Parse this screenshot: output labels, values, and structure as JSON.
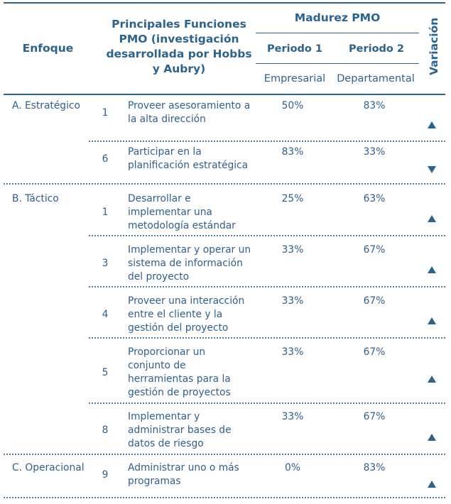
{
  "header": {
    "enfoque": "Enfoque",
    "funciones": [
      "Principales Funciones",
      "PMO (investigación",
      "desarrollada por Hobbs",
      "y Aubry)"
    ],
    "madurez": "Madurez PMO",
    "periodo1": "Periodo 1",
    "periodo2": "Periodo 2",
    "empresarial": "Empresarial",
    "departamental": "Departamental",
    "variacion": "Variación"
  },
  "rows": [
    {
      "enfoque": "A. Estratégico",
      "num": "1",
      "func": [
        "Proveer asesoramiento a",
        "la alta dirección"
      ],
      "p1": "50%",
      "p2": "83%",
      "var": "up"
    },
    {
      "enfoque": "",
      "num": "6",
      "func": [
        "Participar en la",
        "planificación estratégica"
      ],
      "p1": "83%",
      "p2": "33%",
      "var": "down"
    },
    {
      "enfoque": "B. Táctico",
      "num": "1",
      "func": [
        "Desarrollar e",
        "implementar una",
        "metodología estándar"
      ],
      "p1": "25%",
      "p2": "63%",
      "var": "up"
    },
    {
      "enfoque": "",
      "num": "3",
      "func": [
        "Implementar y operar un",
        "sistema de información",
        "del proyecto"
      ],
      "p1": "33%",
      "p2": "67%",
      "var": "up"
    },
    {
      "enfoque": "",
      "num": "4",
      "func": [
        "Proveer una interacción",
        "entre el cliente y la",
        "gestión del proyecto"
      ],
      "p1": "33%",
      "p2": "67%",
      "var": "up"
    },
    {
      "enfoque": "",
      "num": "5",
      "func": [
        "Proporcionar un",
        "conjunto de",
        "herramientas para la",
        "gestión de proyectos"
      ],
      "p1": "33%",
      "p2": "67%",
      "var": "up"
    },
    {
      "enfoque": "",
      "num": "8",
      "func": [
        "Implementar y",
        "administrar bases de",
        "datos de riesgo"
      ],
      "p1": "33%",
      "p2": "67%",
      "var": "up"
    },
    {
      "enfoque": "C. Operacional",
      "num": "9",
      "func": [
        "Administrar uno o más",
        "programas"
      ],
      "p1": "0%",
      "p2": "83%",
      "var": "up"
    }
  ],
  "colors": {
    "primary": "#2b6390",
    "text": "#2f5f8c"
  }
}
